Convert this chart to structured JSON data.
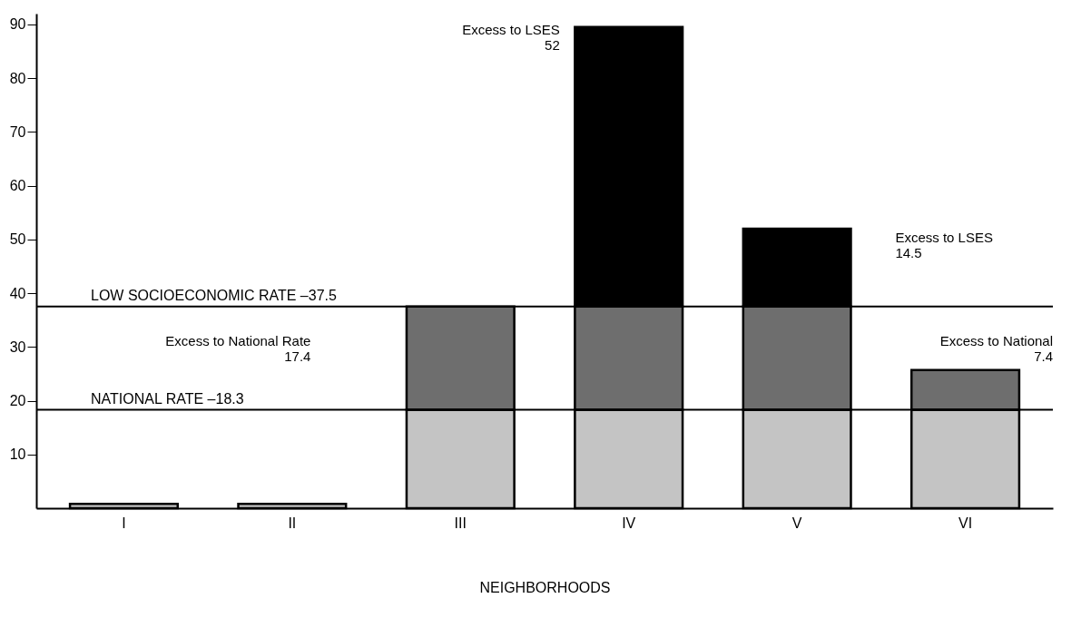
{
  "chart_data": {
    "type": "bar",
    "stacked": true,
    "xlabel": "NEIGHBORHOODS",
    "categories": [
      "I",
      "II",
      "III",
      "IV",
      "V",
      "VI"
    ],
    "series": [
      {
        "color": "#c4c4c4",
        "values": [
          0.8,
          0.8,
          18.3,
          18.3,
          18.3,
          18.3
        ]
      },
      {
        "color": "#6e6e6e",
        "values": [
          null,
          null,
          19.2,
          19.2,
          19.2,
          7.4
        ]
      },
      {
        "color": "#000000",
        "values": [
          null,
          null,
          null,
          52,
          14.5,
          null
        ]
      }
    ],
    "ylim": [
      0,
      92
    ],
    "yticks": [
      10,
      20,
      30,
      40,
      50,
      60,
      70,
      80,
      90
    ],
    "grid": false,
    "ref_lines": [
      {
        "axis": "y",
        "value": 37.5,
        "label": "LOW SOCIOECONOMIC RATE  –37.5",
        "color": "#000000"
      },
      {
        "axis": "y",
        "value": 18.3,
        "label": "NATIONAL RATE  –18.3",
        "color": "#000000"
      }
    ],
    "annotations": [
      "Excess to LSES\n52",
      "Excess to LSES\n14.5",
      "Excess to National Rate\n17.4",
      "Excess to National\n7.4"
    ]
  }
}
